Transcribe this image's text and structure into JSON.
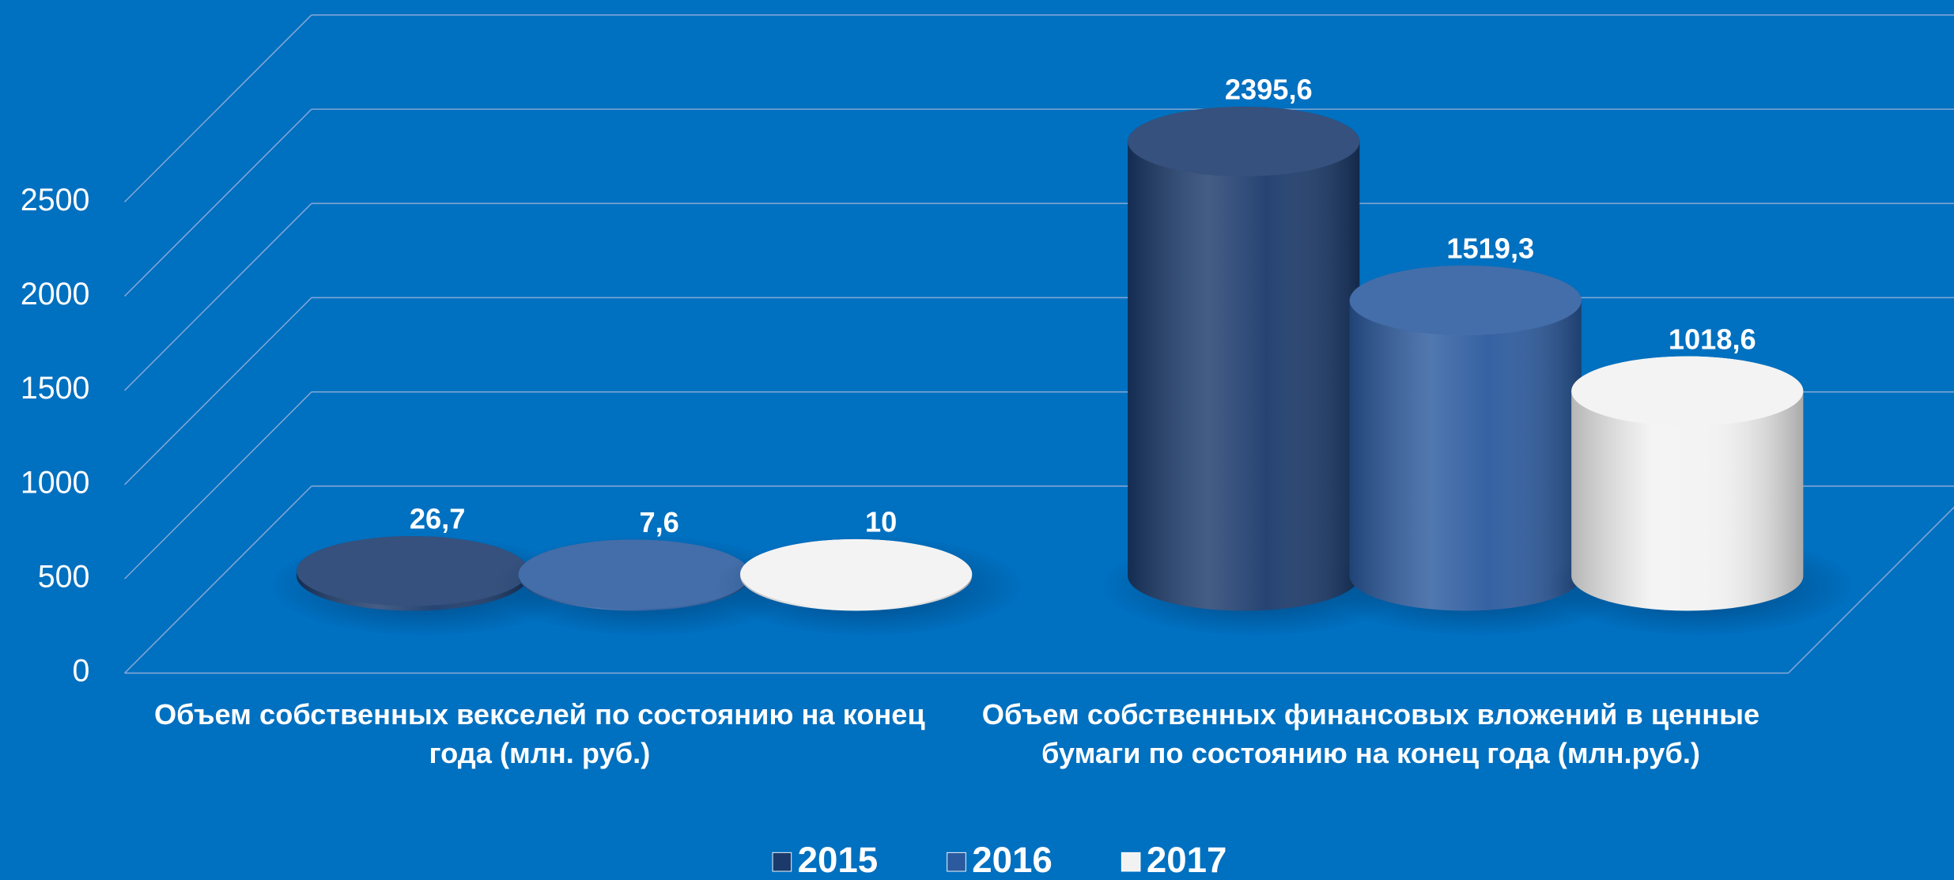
{
  "chart_data": {
    "type": "bar3d",
    "categories": [
      "Объем собственных векселей по состоянию на конец года (млн. руб.)",
      "Объем собственных финансовых вложений в ценные бумаги по состоянию на конец года (млн.руб.)"
    ],
    "series": [
      {
        "name": "2015",
        "color": "#1b3a6b",
        "values": [
          26.7,
          2395.6
        ],
        "value_labels": [
          "26,7",
          "2395,6"
        ]
      },
      {
        "name": "2016",
        "color": "#2b5a9e",
        "values": [
          7.6,
          1519.3
        ],
        "value_labels": [
          "7,6",
          "1519,3"
        ]
      },
      {
        "name": "2017",
        "color": "#f2f2f2",
        "values": [
          10,
          1018.6
        ],
        "value_labels": [
          "10",
          "1018,6"
        ]
      }
    ],
    "ylim": [
      0,
      2500
    ],
    "yticks": [
      0,
      500,
      1000,
      1500,
      2000,
      2500
    ],
    "grid": true,
    "legend": "bottom"
  }
}
